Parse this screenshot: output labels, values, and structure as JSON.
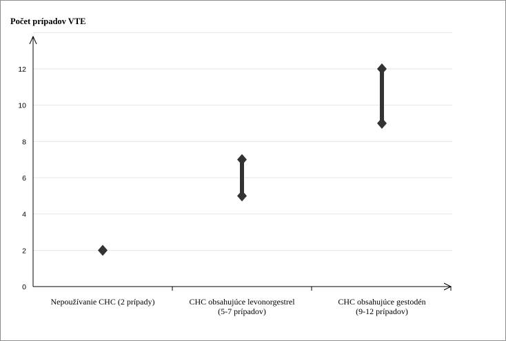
{
  "chart_data": {
    "type": "range",
    "ylabel": "Počet prípadov VTE",
    "xlabel": "",
    "ylim": [
      0,
      14
    ],
    "yticks": [
      0,
      2,
      4,
      6,
      8,
      10,
      12
    ],
    "grid": true,
    "categories": [
      [
        "Nepoužívanie CHC (2 prípady)"
      ],
      [
        "CHC obsahujúce levonorgestrel",
        "(5-7 prípadov)"
      ],
      [
        "CHC obsahujúce gestodén",
        "(9-12 prípadov)"
      ]
    ],
    "ranges": [
      {
        "low": 2,
        "high": 2
      },
      {
        "low": 5,
        "high": 7
      },
      {
        "low": 9,
        "high": 12
      }
    ],
    "mark_color": "#333333",
    "grid_color": "#e6e6e6",
    "axis_color": "#000000"
  }
}
